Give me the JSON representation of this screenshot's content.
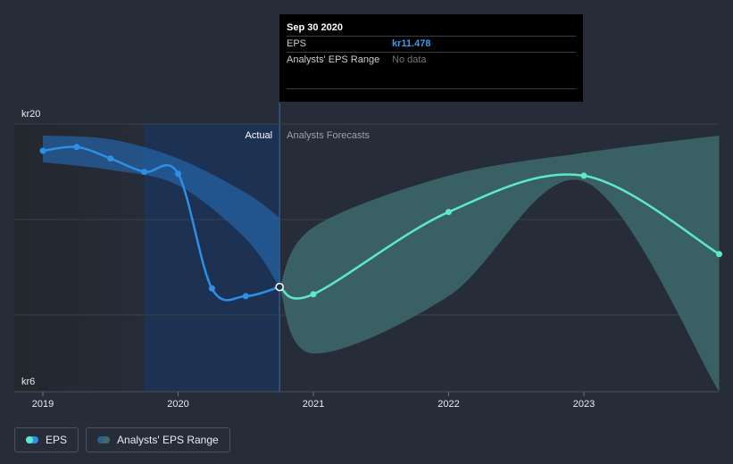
{
  "chart_data": {
    "type": "line",
    "y_tick_labels": [
      "kr20",
      "kr6"
    ],
    "ylim": [
      6,
      20
    ],
    "x_ticks": [
      "2019",
      "2020",
      "2021",
      "2022",
      "2023"
    ],
    "regions": {
      "actual_label": "Actual",
      "forecast_label": "Analysts Forecasts"
    },
    "series": [
      {
        "name": "EPS",
        "color": "#2d8fe6",
        "x": [
          2019.0,
          2019.25,
          2019.5,
          2019.75,
          2020.0,
          2020.25,
          2020.5,
          2020.75
        ],
        "values": [
          18.6,
          18.8,
          18.2,
          17.5,
          17.4,
          11.4,
          11.0,
          11.478
        ]
      },
      {
        "name": "EPS forecast",
        "color": "#5ee8c8",
        "x": [
          2020.75,
          2021.0,
          2022.0,
          2023.0,
          2024.0
        ],
        "values": [
          11.478,
          11.1,
          15.4,
          17.3,
          13.2
        ]
      }
    ],
    "ranges": [
      {
        "name": "Analysts' EPS Range",
        "x_upper": [
          2019.0,
          2019.5,
          2020.0,
          2020.5,
          2020.75
        ],
        "upper": [
          19.4,
          19.2,
          18.2,
          16.4,
          15.1
        ],
        "x_lower": [
          2019.0,
          2019.5,
          2020.0,
          2020.5,
          2020.75
        ],
        "lower": [
          18.0,
          17.6,
          16.8,
          14.0,
          11.478
        ]
      },
      {
        "name": "Analysts' EPS Range",
        "x_upper": [
          2020.75,
          2021.0,
          2022.0,
          2023.0,
          2024.0
        ],
        "upper": [
          11.478,
          14.6,
          17.3,
          18.5,
          19.4
        ],
        "x_lower": [
          2020.75,
          2021.0,
          2022.0,
          2023.0,
          2024.0
        ],
        "lower": [
          11.478,
          8.0,
          11.0,
          17.0,
          6.0
        ]
      }
    ]
  },
  "tooltip": {
    "date": "Sep 30 2020",
    "rows": [
      {
        "label": "EPS",
        "value": "kr11.478"
      },
      {
        "label": "Analysts' EPS Range",
        "value": "No data"
      }
    ]
  },
  "legend": {
    "eps_label": "EPS",
    "range_label": "Analysts' EPS Range"
  },
  "colors": {
    "background": "#262c38",
    "actual_shade": "#1c3458",
    "eps_line": "#2d8fe6",
    "forecast_line": "#5ee8c8",
    "forecast_band": "#3d6a6c",
    "actual_band": "#2460a0"
  }
}
